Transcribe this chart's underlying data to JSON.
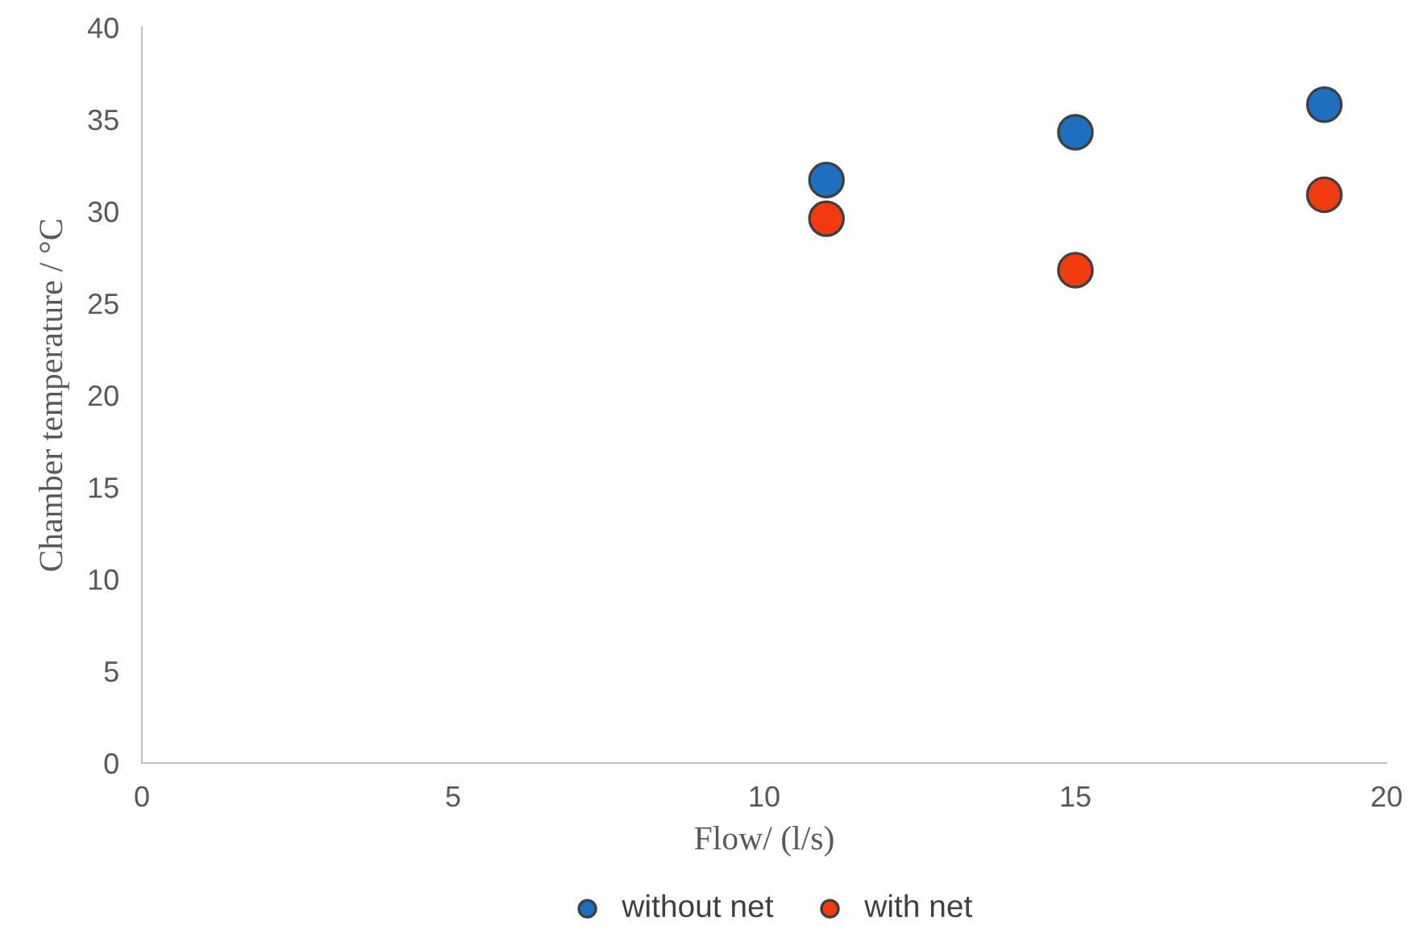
{
  "chart_data": {
    "type": "scatter",
    "xlabel": "Flow/ (l/s)",
    "ylabel": "Chamber temperature / °C",
    "series": [
      {
        "name": "without net",
        "color": "#1f6fc0",
        "x": [
          11,
          15,
          19
        ],
        "values": [
          31.7,
          34.3,
          35.8
        ]
      },
      {
        "name": "with net",
        "color": "#f23c0f",
        "x": [
          11,
          15,
          19
        ],
        "values": [
          29.6,
          26.8,
          30.9
        ]
      }
    ],
    "xlim": [
      0,
      20
    ],
    "xticks": [
      0,
      5,
      10,
      15,
      20
    ],
    "ylim": [
      0,
      40
    ],
    "yticks": [
      0,
      5,
      10,
      15,
      20,
      25,
      30,
      35,
      40
    ],
    "marker": "circle",
    "grid": false,
    "legend": "bottom"
  }
}
